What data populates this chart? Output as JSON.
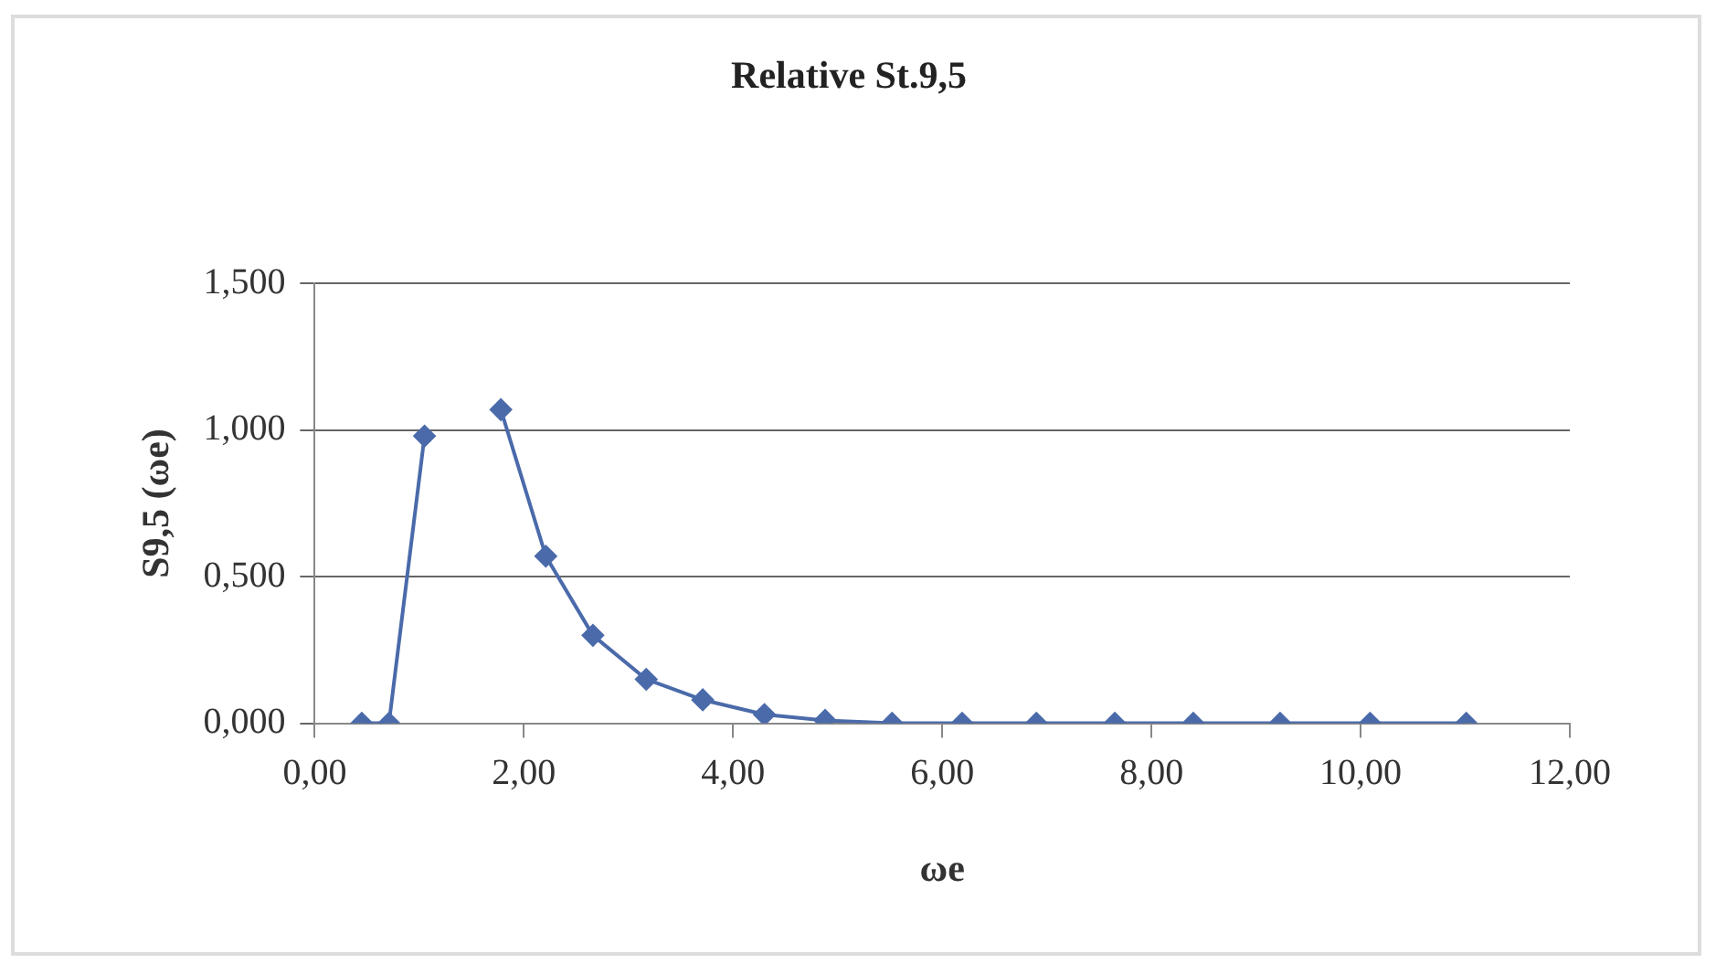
{
  "chart_data": {
    "type": "line",
    "title": "Relative St.9,5",
    "xlabel": "ωe",
    "ylabel": "S9,5 (ωe)",
    "x": [
      0.45,
      0.71,
      1.05,
      1.4,
      1.78,
      2.21,
      2.66,
      3.17,
      3.71,
      4.3,
      4.88,
      5.52,
      6.19,
      6.9,
      7.65,
      8.4,
      9.23,
      10.09,
      11.01
    ],
    "series": [
      {
        "color": "#4a6aaa",
        "values": [
          0,
          0,
          0.98,
          null,
          1.07,
          0.57,
          0.3,
          0.15,
          0.08,
          0.03,
          0.01,
          0,
          0,
          0,
          0,
          0,
          0,
          0,
          0
        ]
      }
    ],
    "xlim": [
      0,
      12
    ],
    "xticks": [
      {
        "value": 0,
        "label": "0,00"
      },
      {
        "value": 2,
        "label": "2,00"
      },
      {
        "value": 4,
        "label": "4,00"
      },
      {
        "value": 6,
        "label": "6,00"
      },
      {
        "value": 8,
        "label": "8,00"
      },
      {
        "value": 10,
        "label": "10,00"
      },
      {
        "value": 12,
        "label": "12,00"
      }
    ],
    "ylim": [
      0,
      1.5
    ],
    "yticks": [
      {
        "value": 0,
        "label": "0,000"
      },
      {
        "value": 0.5,
        "label": "0,500"
      },
      {
        "value": 1,
        "label": "1,000"
      },
      {
        "value": 1.5,
        "label": "1,500"
      }
    ],
    "grid": "y",
    "marker": "diamond",
    "line_style": "solid",
    "legend": false
  }
}
